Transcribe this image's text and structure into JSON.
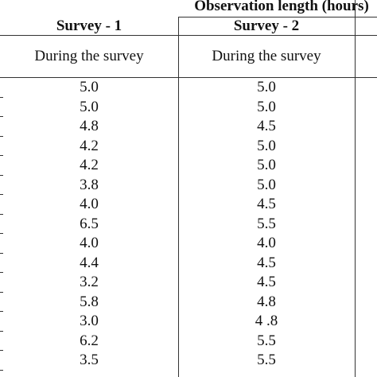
{
  "table": {
    "spanning_header": "Observation length (hours)",
    "columns": [
      "Survey - 1",
      "Survey - 2"
    ],
    "subheaders": [
      "During the survey",
      "During the survey"
    ],
    "rows": [
      [
        "5.0",
        "5.0"
      ],
      [
        "5.0",
        "5.0"
      ],
      [
        "4.8",
        "4.5"
      ],
      [
        "4.2",
        "5.0"
      ],
      [
        "4.2",
        "5.0"
      ],
      [
        "3.8",
        "5.0"
      ],
      [
        "4.0",
        "4.5"
      ],
      [
        "6.5",
        "5.5"
      ],
      [
        "4.0",
        "4.0"
      ],
      [
        "4.4",
        "4.5"
      ],
      [
        "3.2",
        "4.5"
      ],
      [
        "5.8",
        "4.8"
      ],
      [
        "3.0",
        "4 .8"
      ],
      [
        "6.2",
        "5.5"
      ],
      [
        "3.5",
        "5.5"
      ]
    ]
  }
}
